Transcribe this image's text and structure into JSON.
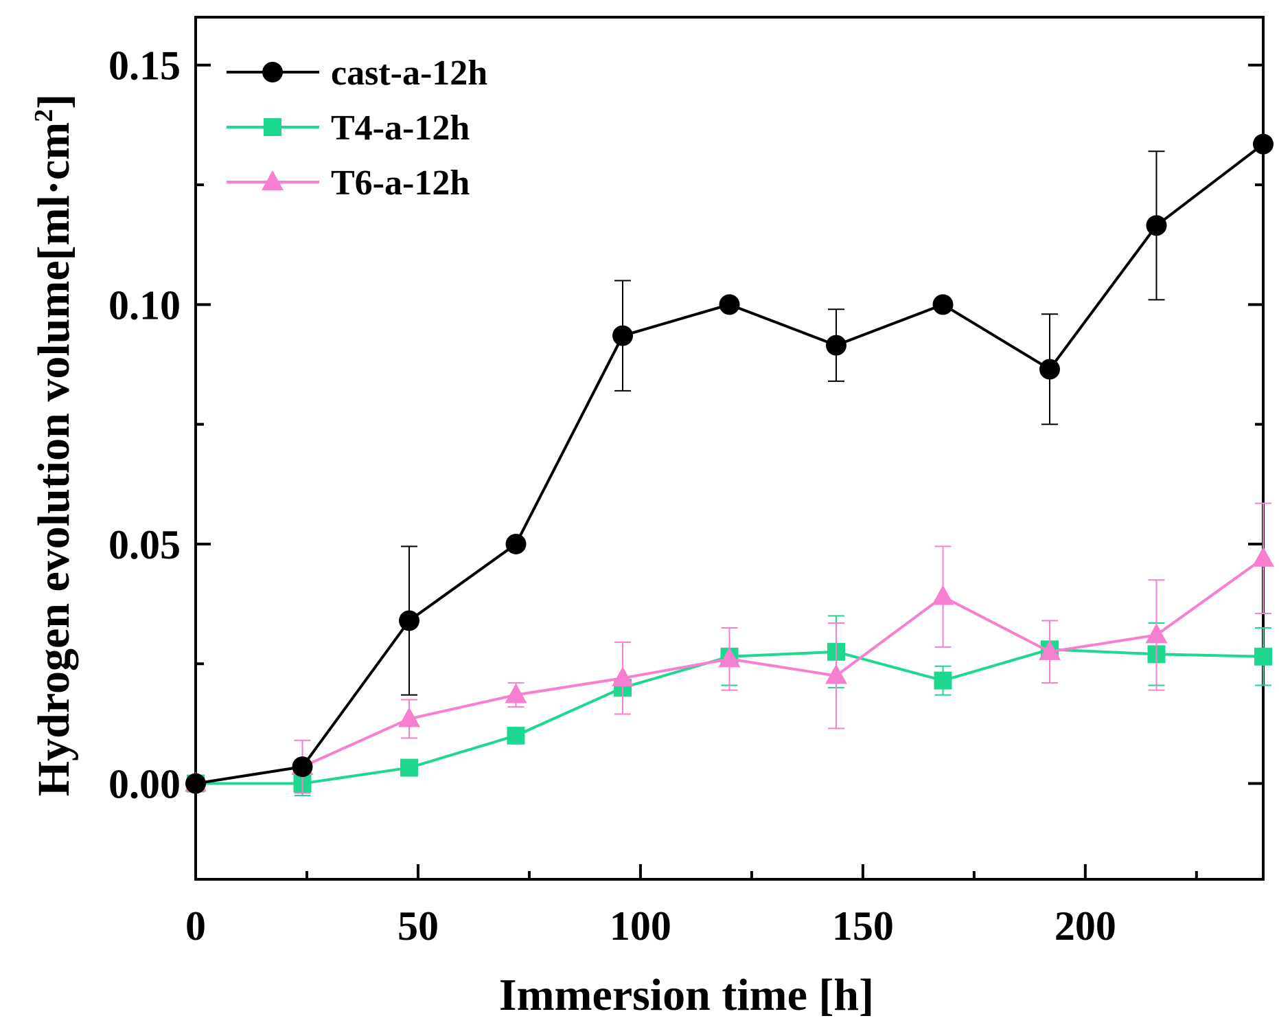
{
  "chart_data": {
    "type": "line",
    "title": "",
    "xlabel": "Immersion time [h]",
    "ylabel_main": "Hydrogen evolution volume[ml·cm",
    "ylabel_sup": "2",
    "ylabel_end": "]",
    "xlim": [
      0,
      240
    ],
    "ylim": [
      -0.02,
      0.16
    ],
    "xticks": [
      0,
      50,
      100,
      150,
      200
    ],
    "xtick_labels": [
      "0",
      "50",
      "100",
      "150",
      "200"
    ],
    "x_minor_ticks": [
      25,
      75,
      125,
      175,
      225
    ],
    "yticks": [
      0.0,
      0.05,
      0.1,
      0.15
    ],
    "ytick_labels": [
      "0.00",
      "0.05",
      "0.10",
      "0.15"
    ],
    "y_minor_ticks": [
      0.025,
      0.075,
      0.125
    ],
    "legend_position": "top-left",
    "grid": false,
    "series": [
      {
        "name": "cast-a-12h",
        "color": "#000000",
        "marker": "circle",
        "x": [
          0,
          24,
          48,
          72,
          96,
          120,
          144,
          168,
          192,
          216,
          240
        ],
        "y": [
          0.0,
          0.0035,
          0.034,
          0.05,
          0.0935,
          0.1,
          0.0915,
          0.1,
          0.0865,
          0.1165,
          0.1335
        ],
        "err": [
          0.0,
          0.0,
          0.0155,
          0.0,
          0.0115,
          0.0,
          0.0075,
          0.0,
          0.0115,
          0.0155,
          0.0
        ]
      },
      {
        "name": "T4-a-12h",
        "color": "#1ed890",
        "marker": "square",
        "x": [
          0,
          24,
          48,
          72,
          96,
          120,
          144,
          168,
          192,
          216,
          240
        ],
        "y": [
          0.0,
          0.0,
          0.0033,
          0.01,
          0.02,
          0.0265,
          0.0275,
          0.0215,
          0.028,
          0.027,
          0.0265
        ],
        "err": [
          0.0,
          0.0025,
          0.0,
          0.0,
          0.0,
          0.006,
          0.0075,
          0.003,
          0.0,
          0.0065,
          0.006
        ]
      },
      {
        "name": "T6-a-12h",
        "color": "#f77fcf",
        "marker": "triangle",
        "x": [
          0,
          24,
          48,
          72,
          96,
          120,
          144,
          168,
          192,
          216,
          240
        ],
        "y": [
          0.0,
          0.0035,
          0.0135,
          0.0185,
          0.022,
          0.026,
          0.0225,
          0.039,
          0.0275,
          0.031,
          0.047
        ],
        "err": [
          0.0,
          0.0055,
          0.004,
          0.0025,
          0.0075,
          0.0065,
          0.011,
          0.0105,
          0.0065,
          0.0115,
          0.0115
        ]
      }
    ]
  }
}
